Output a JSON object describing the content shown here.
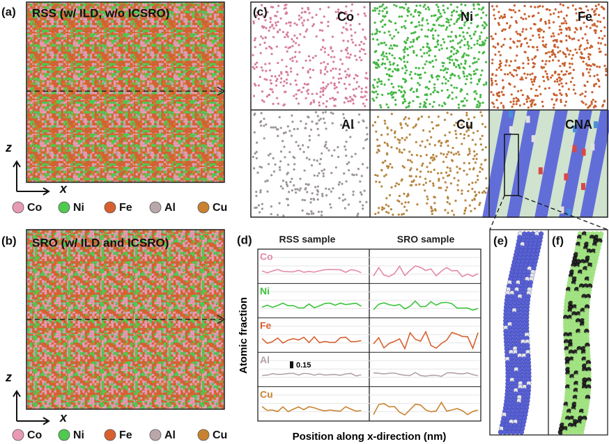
{
  "panels": {
    "a": {
      "label": "(a)",
      "title": "RSS (w/ ILD, w/o ICSRO)",
      "z_axis": "z",
      "x_axis": "x"
    },
    "b": {
      "label": "(b)",
      "title": "SRO (w/ ILD and ICSRO)",
      "z_axis": "z",
      "x_axis": "x"
    },
    "legend": [
      "Co",
      "Ni",
      "Fe",
      "Al",
      "Cu"
    ],
    "c": {
      "label": "(c)",
      "tiles": [
        "Co",
        "Ni",
        "Fe",
        "Al",
        "Cu",
        "CNA"
      ]
    },
    "d": {
      "label": "(d)",
      "columns": [
        "RSS sample",
        "SRO sample"
      ],
      "rows": [
        "Co",
        "Ni",
        "Fe",
        "Al",
        "Cu"
      ],
      "scale_bar": "0.15",
      "y_label": "Atomic fraction",
      "x_label": "Position along x-direction (nm)"
    },
    "e": {
      "label": "(e)"
    },
    "f": {
      "label": "(f)"
    }
  }
}
